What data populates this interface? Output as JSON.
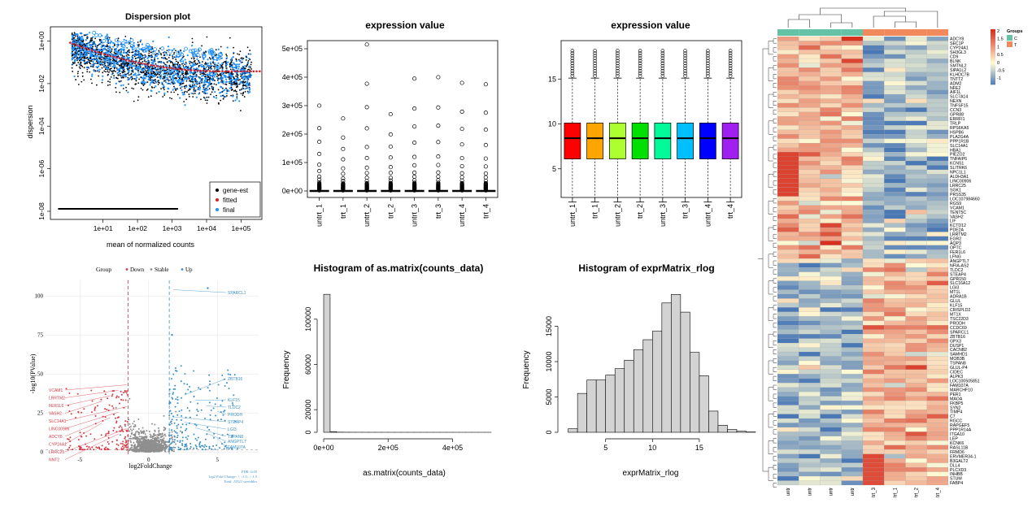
{
  "chart_data": [
    {
      "type": "scatter",
      "title": "Dispersion plot",
      "xlabel": "mean of normalized counts",
      "ylabel": "dispersion",
      "x_scale": "log",
      "y_scale": "log",
      "xlim": [
        0.3,
        400000
      ],
      "ylim": [
        1e-08,
        3
      ],
      "x_ticks": [
        "1e+01",
        "1e+02",
        "1e+03",
        "1e+04",
        "1e+05"
      ],
      "y_ticks": [
        "1e+00",
        "1e-02",
        "1e-04",
        "1e-06",
        "1e-08"
      ],
      "legend": [
        "gene-est",
        "fitted",
        "final"
      ],
      "legend_position": "bottom-right",
      "colors": {
        "gene-est": "#000000",
        "fitted": "#e41a1c",
        "final": "#1e90ff"
      },
      "fitted_trend": [
        [
          1,
          0.9
        ],
        [
          10,
          0.3
        ],
        [
          100,
          0.08
        ],
        [
          1000,
          0.03
        ],
        [
          10000,
          0.015
        ],
        [
          100000,
          0.014
        ],
        [
          300000,
          0.014
        ]
      ]
    },
    {
      "type": "box",
      "title": "expression value",
      "categories": [
        "untrt_1",
        "trt_1",
        "untrt_2",
        "trt_2",
        "untrt_3",
        "trt_3",
        "untrt_4",
        "trt_4"
      ],
      "ylim": [
        0,
        520000
      ],
      "y_ticks": [
        "0e+00",
        "1e+05",
        "2e+05",
        "3e+05",
        "4e+05",
        "5e+05"
      ],
      "max_outlier": [
        300000,
        255000,
        515000,
        270000,
        395000,
        400000,
        380000,
        375000
      ]
    },
    {
      "type": "box",
      "title": "expression value",
      "categories": [
        "untrt_1",
        "trt_1",
        "untrt_2",
        "trt_2",
        "untrt_3",
        "trt_3",
        "untrt_4",
        "trt_4"
      ],
      "ylim": [
        0,
        20
      ],
      "y_ticks": [
        "5",
        "10",
        "15"
      ],
      "box_colors": [
        "#ff0000",
        "#ffa500",
        "#adff2f",
        "#00e000",
        "#00fa9a",
        "#00bfff",
        "#0000ff",
        "#a020f0"
      ],
      "stats": {
        "q1": 6.1,
        "median": 8.4,
        "q3": 10.1,
        "lower_whisker": 1.3,
        "upper_whisker": 15.1,
        "max": 18.3
      }
    },
    {
      "type": "heatmap",
      "title": "",
      "columns": [
        "untrt_1",
        "untrt_2",
        "untrt_3",
        "untrt_4",
        "trt_3",
        "trt_1",
        "trt_2",
        "trt_4"
      ],
      "col_labels_shown": [
        "untr",
        "untr",
        "untr",
        "untr",
        "trt_3",
        "trt_1",
        "trt_2",
        "trt_4"
      ],
      "groups": [
        "C",
        "C",
        "C",
        "C",
        "T",
        "T",
        "T",
        "T"
      ],
      "legend_title": "Groups",
      "legend_entries": [
        "C",
        "T"
      ],
      "group_colors": {
        "C": "#66c2a5",
        "T": "#f08a5d"
      },
      "scale_ticks": [
        "2",
        "1.5",
        "1",
        "0.5",
        "0",
        "-0.5",
        "-1"
      ],
      "genes": [
        "ADCY8",
        "SEC1P",
        "CYP24A1",
        "SH3GL3",
        "CD9",
        "BLNK",
        "SMTNL2",
        "SIPA1L2",
        "KLHDC7B",
        "TNTT2",
        "ADM2",
        "NFE2",
        "AIF1L",
        "SLC7A14",
        "NEXN",
        "TNFSF15",
        "CCN3",
        "GPR88",
        "ERRFI1",
        "TRLP",
        "RPS6KA5",
        "HSPB6",
        "PLA2G4A",
        "PPP1R1B",
        "SLC14A1",
        "HBA1",
        "PIEZO2",
        "TNFAIP6",
        "KCNS1",
        "SLITRK6",
        "NPC1L1",
        "ALDH3A1",
        "LINC00906",
        "LRRC25",
        "SGK1",
        "PRSS35",
        "LOC107984660",
        "RGS9",
        "VCAM1",
        "TENT5C",
        "VASH2",
        "LIF",
        "KCTD12",
        "PDE2A",
        "LRRTM2",
        "EGR2",
        "AQP3",
        "OPTC",
        "FER1L6",
        "LFNG",
        "ANGPTL7",
        "NFIA-AS2",
        "TLDC2",
        "STEAP4",
        "GPR150",
        "SLC16A12",
        "LGI3",
        "MT1L",
        "ADRA1B",
        "GLUL",
        "KLF15",
        "CRISPLD2",
        "MT1X",
        "TSC22D3",
        "PRODH",
        "CCDC69",
        "SPARCL1",
        "ZBTB16",
        "GPX3",
        "DUSP1",
        "CACNB2",
        "SAMHD1",
        "MOB3B",
        "TSPAN8",
        "GLUL-P4",
        "CIDEC",
        "ALPK3",
        "LOC100505851",
        "FAM107A",
        "MARCHF10",
        "PER1",
        "MAOA",
        "FKBP5",
        "SYN2",
        "TIMP4",
        "C7",
        "RGCC",
        "RAPGEF5",
        "PPP1R14A",
        "ITGA10",
        "LEP",
        "KCNK6",
        "RASL11B",
        "FRMD6",
        "ERVMER34-1",
        "B3GALT2",
        "DLL4",
        "PLCXD3",
        "INHBB",
        "STUM",
        "FABP4"
      ]
    },
    {
      "type": "scatter",
      "title": "",
      "xlabel": "log2FoldChange",
      "ylabel": "-log10(PValue)",
      "legend_title": "Group",
      "legend": [
        "Down",
        "Stable",
        "Up"
      ],
      "legend_position": "top",
      "colors": {
        "Down": "#d73844",
        "Stable": "#8f8f8f",
        "Up": "#3b8fc6"
      },
      "xlim": [
        -7.5,
        8
      ],
      "ylim": [
        -2,
        110
      ],
      "x_ticks": [
        "-5",
        "0",
        "5"
      ],
      "y_ticks": [
        "0",
        "25",
        "50",
        "75",
        "100"
      ],
      "thresholds": {
        "log2fc": 1.5
      },
      "labels_down": [
        "VCAM1",
        "LRRTM2",
        "FER1L6",
        "VASH2",
        "SLC14A1",
        "LINC00906",
        "ADCY8",
        "CYP24A1",
        "LRRC25",
        "NNT2"
      ],
      "labels_up": [
        "SPARCL1",
        "ZBTB16",
        "KLF15",
        "TLDC2",
        "PRODH",
        "STEAP4",
        "LGI3",
        "TSPAN8",
        "ANGPTL7",
        "FAM107A"
      ],
      "caption": [
        "FDR: 0.05",
        "log2 Fold Change: < -1.5; > 1.5",
        "Total: 15521 variables"
      ]
    },
    {
      "type": "bar",
      "title": "Histogram of as.matrix(counts_data)",
      "xlabel": "as.matrix(counts_data)",
      "ylabel": "Frequency",
      "bin_width": 20000,
      "bins_start": 0,
      "values": [
        122000,
        600,
        150,
        80,
        50,
        35,
        25,
        20,
        15,
        12,
        10,
        8,
        6,
        5,
        4,
        3,
        3,
        2,
        2,
        2,
        1,
        1,
        1,
        1,
        1,
        1
      ],
      "xlim": [
        0,
        520000
      ],
      "ylim": [
        0,
        125000
      ],
      "x_ticks": [
        "0e+00",
        "2e+05",
        "4e+05"
      ],
      "y_ticks": [
        "0",
        "20000",
        "60000",
        "100000"
      ]
    },
    {
      "type": "bar",
      "title": "Histogram of exprMatrix_rlog",
      "xlabel": "exprMatrix_rlog",
      "ylabel": "Frequency",
      "bin_width": 1,
      "bins_start": 1,
      "values": [
        500,
        5500,
        7400,
        7400,
        8100,
        9000,
        10200,
        11700,
        13100,
        14300,
        18300,
        19500,
        17000,
        11300,
        8000,
        3000,
        1000,
        400,
        150,
        50
      ],
      "xlim": [
        1,
        21
      ],
      "ylim": [
        0,
        20000
      ],
      "x_ticks": [
        "5",
        "10",
        "15"
      ],
      "y_ticks": [
        "0",
        "5000",
        "10000",
        "15000"
      ]
    }
  ]
}
